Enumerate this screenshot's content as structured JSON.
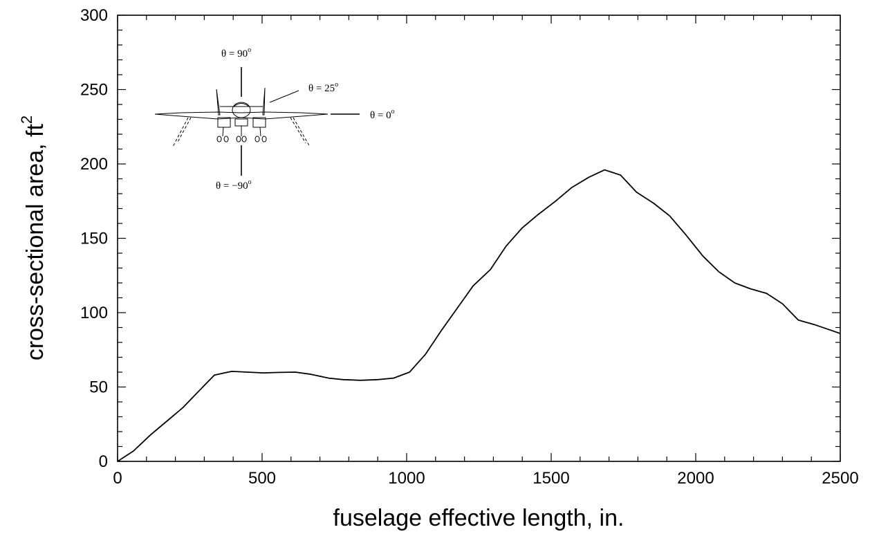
{
  "chart_data": {
    "type": "line",
    "title": "",
    "xlabel": "fuselage effective length, in.",
    "ylabel": "cross-sectional area, ft",
    "ylabel_superscript": "2",
    "xlim": [
      0,
      2500
    ],
    "ylim": [
      0,
      300
    ],
    "xticks": [
      0,
      500,
      1000,
      1500,
      2000,
      2500
    ],
    "yticks": [
      0,
      50,
      100,
      150,
      200,
      250,
      300
    ],
    "xtick_labels": [
      "0",
      "500",
      "1000",
      "1500",
      "2000",
      "2500"
    ],
    "ytick_labels": [
      "0",
      "50",
      "100",
      "150",
      "200",
      "250",
      "300"
    ],
    "grid": false,
    "series": [
      {
        "x": [
          0,
          55,
          115,
          170,
          225,
          285,
          335,
          395,
          450,
          505,
          560,
          615,
          670,
          730,
          780,
          840,
          900,
          955,
          1010,
          1065,
          1120,
          1175,
          1230,
          1290,
          1345,
          1400,
          1455,
          1515,
          1570,
          1630,
          1685,
          1740,
          1795,
          1855,
          1910,
          1965,
          2025,
          2080,
          2135,
          2190,
          2245,
          2300,
          2355,
          2410,
          2470,
          2500
        ],
        "y": [
          0,
          7,
          18,
          27,
          36,
          48,
          58,
          60.5,
          60,
          59.5,
          59.8,
          60,
          58.5,
          56,
          55,
          54.5,
          55,
          56,
          60,
          72,
          88,
          103,
          118,
          129,
          145,
          157,
          166,
          175,
          184,
          191,
          196,
          192.5,
          181,
          173.5,
          165,
          152.5,
          138,
          127.5,
          120,
          116,
          113,
          106,
          95,
          92,
          88,
          86
        ]
      }
    ]
  },
  "inset": {
    "label_top": "θ = 90",
    "label_top_sup": "o",
    "label_diag": "θ = 25",
    "label_diag_sup": "o",
    "label_right": "θ = 0",
    "label_right_sup": "o",
    "label_bottom": "θ = −90",
    "label_bottom_sup": "o"
  }
}
